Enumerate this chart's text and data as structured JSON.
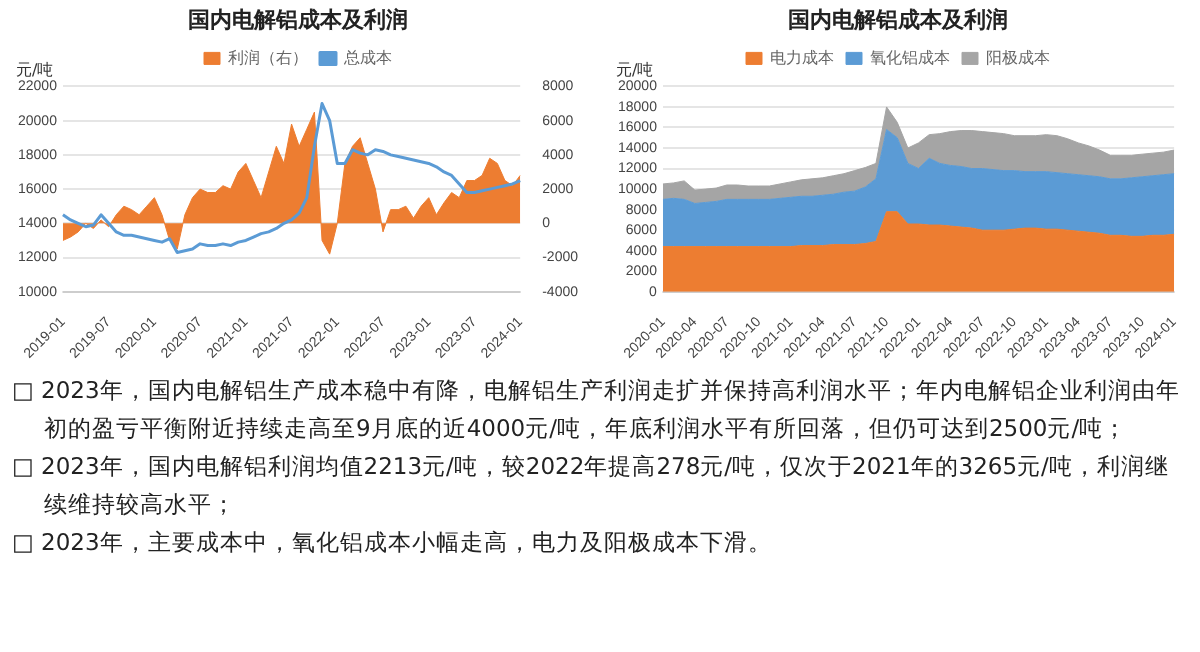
{
  "chart_data": [
    {
      "type": "line",
      "title": "国内电解铝成本及利润",
      "ylabel": "元/吨",
      "categories": [
        "2019-01",
        null,
        null,
        null,
        null,
        null,
        "2019-07",
        null,
        null,
        null,
        null,
        null,
        "2020-01",
        null,
        null,
        null,
        null,
        null,
        "2020-07",
        null,
        null,
        null,
        null,
        null,
        "2021-01",
        null,
        null,
        null,
        null,
        null,
        "2021-07",
        null,
        null,
        null,
        null,
        null,
        "2022-01",
        null,
        null,
        null,
        null,
        null,
        "2022-07",
        null,
        null,
        null,
        null,
        null,
        "2023-01",
        null,
        null,
        null,
        null,
        null,
        "2023-07",
        null,
        null,
        null,
        null,
        null,
        "2024-01"
      ],
      "series": [
        {
          "name": "利润（右）",
          "type": "area",
          "axis": "y2",
          "color": "#ed7d31",
          "values": [
            -1000,
            -800,
            -500,
            0,
            -300,
            200,
            -200,
            500,
            1000,
            800,
            500,
            1000,
            1500,
            500,
            -1000,
            -1500,
            500,
            1500,
            2000,
            1800,
            1800,
            2200,
            2000,
            3000,
            3500,
            2500,
            1500,
            3000,
            4500,
            3500,
            5800,
            4500,
            5500,
            6500,
            -1000,
            -1800,
            0,
            3500,
            4500,
            5000,
            3500,
            2000,
            -500,
            800,
            800,
            1000,
            300,
            1000,
            1500,
            500,
            1200,
            1800,
            1500,
            2500,
            2500,
            2800,
            3800,
            3500,
            2500,
            2200,
            2800
          ]
        },
        {
          "name": "总成本",
          "type": "line",
          "color": "#5b9bd5",
          "values": [
            14500,
            14200,
            14000,
            13800,
            13900,
            14500,
            14000,
            13500,
            13300,
            13300,
            13200,
            13100,
            13000,
            12900,
            13100,
            12300,
            12400,
            12500,
            12800,
            12700,
            12700,
            12800,
            12700,
            12900,
            13000,
            13200,
            13400,
            13500,
            13700,
            14000,
            14200,
            14600,
            15500,
            18500,
            21000,
            20000,
            17500,
            17500,
            18300,
            18100,
            18000,
            18300,
            18200,
            18000,
            17900,
            17800,
            17700,
            17600,
            17500,
            17300,
            17000,
            16800,
            16300,
            15800,
            15800,
            15900,
            16000,
            16100,
            16200,
            16300,
            16500
          ]
        }
      ],
      "ylim": [
        10000,
        22000
      ],
      "yticks": [
        10000,
        12000,
        14000,
        16000,
        18000,
        20000,
        22000
      ],
      "y2lim": [
        -4000,
        8000
      ],
      "y2ticks": [
        -4000,
        -2000,
        0,
        2000,
        4000,
        6000,
        8000
      ],
      "grid": "y",
      "legend": "top"
    },
    {
      "type": "area",
      "title": "国内电解铝成本及利润",
      "ylabel": "元/吨",
      "stacked": true,
      "categories": [
        "2020-01",
        null,
        null,
        "2020-04",
        null,
        null,
        "2020-07",
        null,
        null,
        "2020-10",
        null,
        null,
        "2021-01",
        null,
        null,
        "2021-04",
        null,
        null,
        "2021-07",
        null,
        null,
        "2021-10",
        null,
        null,
        "2022-01",
        null,
        null,
        "2022-04",
        null,
        null,
        "2022-07",
        null,
        null,
        "2022-10",
        null,
        null,
        "2023-01",
        null,
        null,
        "2023-04",
        null,
        null,
        "2023-07",
        null,
        null,
        "2023-10",
        null,
        null,
        "2024-01"
      ],
      "series": [
        {
          "name": "电力成本",
          "color": "#ed7d31",
          "values": [
            4400,
            4400,
            4400,
            4400,
            4400,
            4400,
            4400,
            4400,
            4400,
            4400,
            4400,
            4400,
            4400,
            4500,
            4500,
            4500,
            4600,
            4600,
            4600,
            4700,
            4900,
            7800,
            7800,
            6600,
            6600,
            6500,
            6500,
            6400,
            6300,
            6200,
            6000,
            6000,
            6000,
            6100,
            6200,
            6200,
            6100,
            6100,
            6000,
            5900,
            5800,
            5700,
            5500,
            5500,
            5400,
            5400,
            5500,
            5500,
            5600
          ]
        },
        {
          "name": "氧化铝成本",
          "color": "#5b9bd5",
          "values": [
            4600,
            4700,
            4600,
            4200,
            4300,
            4400,
            4600,
            4600,
            4600,
            4600,
            4600,
            4700,
            4800,
            4800,
            4800,
            4900,
            4900,
            5100,
            5200,
            5500,
            6100,
            8000,
            7200,
            5900,
            5400,
            6500,
            6000,
            5900,
            5900,
            5800,
            6000,
            5900,
            5800,
            5700,
            5500,
            5500,
            5600,
            5500,
            5500,
            5500,
            5500,
            5500,
            5500,
            5500,
            5700,
            5800,
            5800,
            5900,
            5900
          ]
        },
        {
          "name": "阳极成本",
          "color": "#a5a5a5",
          "values": [
            1500,
            1500,
            1800,
            1300,
            1300,
            1300,
            1400,
            1400,
            1300,
            1300,
            1300,
            1400,
            1500,
            1600,
            1700,
            1700,
            1800,
            1800,
            2000,
            1900,
            1500,
            2200,
            1500,
            1500,
            2500,
            2300,
            2900,
            3300,
            3500,
            3700,
            3600,
            3600,
            3600,
            3400,
            3500,
            3500,
            3600,
            3600,
            3400,
            3100,
            2900,
            2600,
            2300,
            2300,
            2200,
            2200,
            2200,
            2200,
            2300
          ]
        }
      ],
      "ylim": [
        0,
        20000
      ],
      "yticks": [
        0,
        2000,
        4000,
        6000,
        8000,
        10000,
        12000,
        14000,
        16000,
        18000,
        20000
      ],
      "grid": "y",
      "legend": "top"
    },
    {
      "type": "other",
      "annotations": [
        "□ 2023年，国内电解铝生产成本稳中有降，电解铝生产利润走扩并保持高利润水平；年内电解铝企业利润由年初的盈亏平衡附近持续走高至9月底的近4000元/吨，年底利润水平有所回落，但仍可达到2500元/吨；",
        "□ 2023年，国内电解铝利润均值2213元/吨，较2022年提高278元/吨，仅次于2021年的3265元/吨，利润继续维持较高水平；",
        "□ 2023年，主要成本中，氧化铝成本小幅走高，电力及阳极成本下滑。"
      ]
    }
  ]
}
